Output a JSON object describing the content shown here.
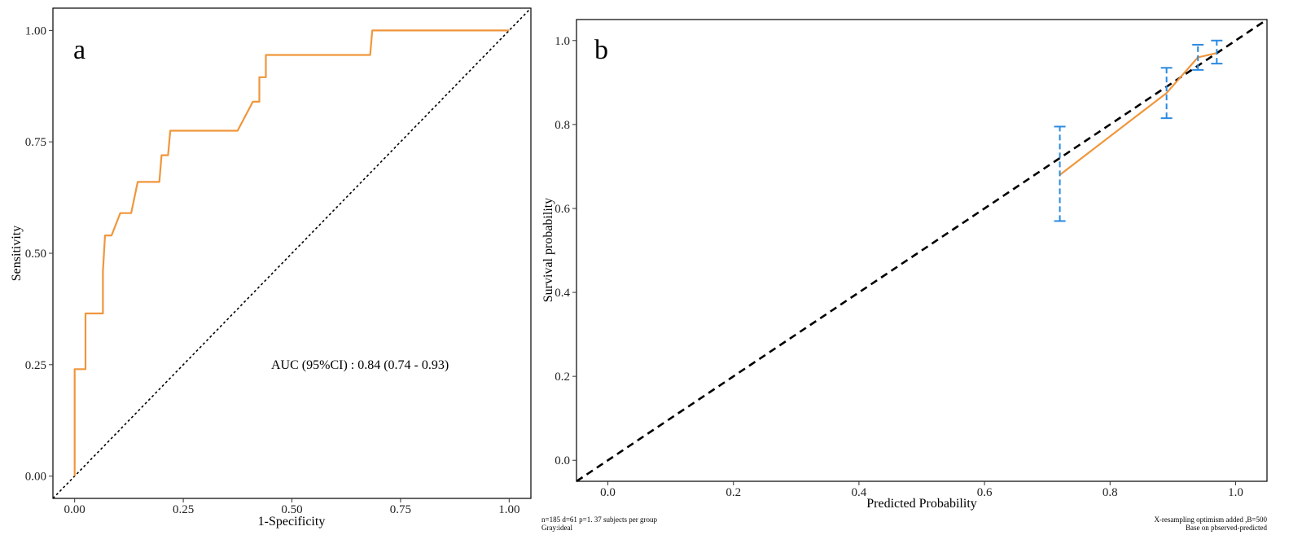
{
  "chart_data": [
    {
      "type": "line",
      "panel_label": "a",
      "xlabel": "1-Specificity",
      "ylabel": "Sensitivity",
      "xlim": [
        -0.05,
        1.05
      ],
      "ylim": [
        -0.05,
        1.05
      ],
      "xticks": [
        0,
        0.25,
        0.5,
        0.75,
        1
      ],
      "xtick_labels": [
        "0.00",
        "0.25",
        "0.50",
        "0.75",
        "1.00"
      ],
      "yticks": [
        0,
        0.25,
        0.5,
        0.75,
        1
      ],
      "ytick_labels": [
        "0.00",
        "0.25",
        "0.50",
        "0.75",
        "1.00"
      ],
      "annotation": "AUC (95%CI) : 0.84 (0.74 - 0.93)",
      "grid": false,
      "series": [
        {
          "color": "#f0963c",
          "x": [
            0,
            0,
            0.025,
            0.025,
            0.065,
            0.065,
            0.07,
            0.07,
            0.085,
            0.105,
            0.13,
            0.145,
            0.195,
            0.2,
            0.215,
            0.22,
            0.375,
            0.41,
            0.425,
            0.425,
            0.44,
            0.44,
            0.68,
            0.685,
            1.0
          ],
          "y": [
            0,
            0.24,
            0.24,
            0.365,
            0.365,
            0.46,
            0.54,
            0.54,
            0.54,
            0.59,
            0.59,
            0.66,
            0.66,
            0.72,
            0.72,
            0.775,
            0.775,
            0.84,
            0.84,
            0.895,
            0.895,
            0.945,
            0.945,
            1.0,
            1.0
          ]
        },
        {
          "style": "dotted",
          "color": "#000000",
          "x": [
            -0.05,
            1.05
          ],
          "y": [
            -0.05,
            1.05
          ]
        }
      ]
    },
    {
      "type": "line",
      "panel_label": "b",
      "xlabel": "Predicted Probability",
      "ylabel": "Survival probability",
      "xlim": [
        -0.05,
        1.05
      ],
      "ylim": [
        -0.05,
        1.05
      ],
      "xticks": [
        0,
        0.2,
        0.4,
        0.6,
        0.8,
        1
      ],
      "xtick_labels": [
        "0.0",
        "0.2",
        "0.4",
        "0.6",
        "0.8",
        "1.0"
      ],
      "yticks": [
        0,
        0.2,
        0.4,
        0.6,
        0.8,
        1
      ],
      "ytick_labels": [
        "0.0",
        "0.2",
        "0.4",
        "0.6",
        "0.8",
        "1.0"
      ],
      "grid": false,
      "series": [
        {
          "style": "dashed",
          "color": "#000000",
          "x": [
            -0.05,
            1.05
          ],
          "y": [
            -0.05,
            1.05
          ]
        },
        {
          "color": "#f0963c",
          "x": [
            0.72,
            0.89,
            0.94,
            0.97
          ],
          "y": [
            0.68,
            0.875,
            0.96,
            0.97
          ]
        }
      ],
      "error_bars": {
        "color": "#2b8ae0",
        "x": [
          0.72,
          0.89,
          0.94,
          0.97
        ],
        "low": [
          0.57,
          0.815,
          0.93,
          0.945
        ],
        "high": [
          0.795,
          0.935,
          0.99,
          1.0
        ]
      },
      "footnotes": {
        "left": [
          "n=185 d=61 p=1. 37 subjects per group",
          "Gray:ideal"
        ],
        "right": [
          "X-resampling optimism added ,B=500",
          "Base on pbserved-predicted"
        ]
      }
    }
  ]
}
